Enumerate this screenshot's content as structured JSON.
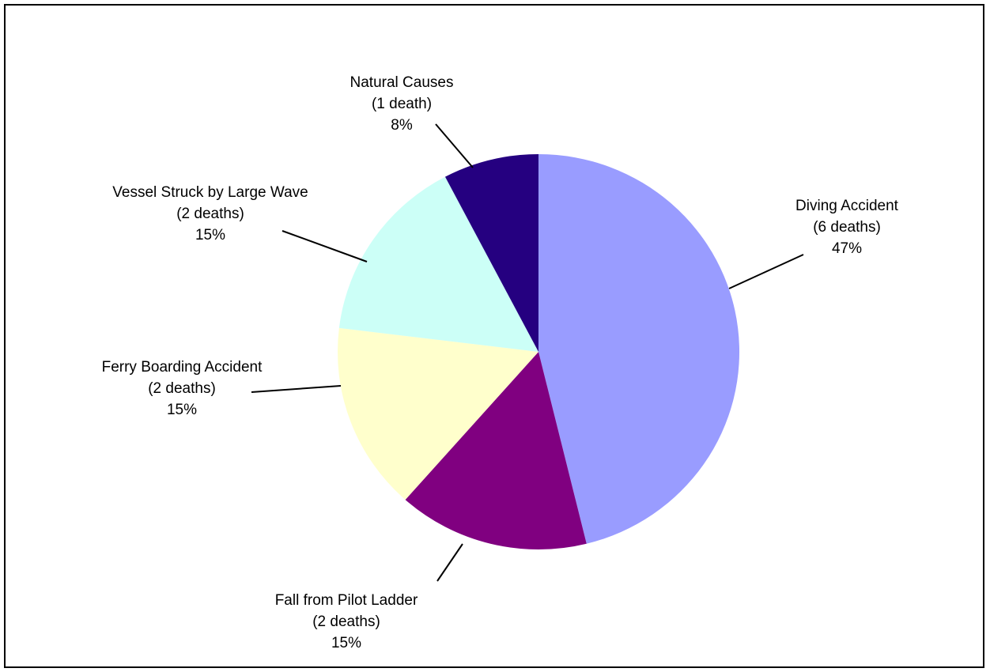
{
  "chart_data": {
    "type": "pie",
    "title": "",
    "slices": [
      {
        "label": "Diving Accident",
        "count_text": "(6 deaths)",
        "percent_text": "47%",
        "value": 6,
        "color": "#999cff"
      },
      {
        "label": "Fall from Pilot Ladder",
        "count_text": "(2 deaths)",
        "percent_text": "15%",
        "value": 2,
        "color": "#800080"
      },
      {
        "label": "Ferry Boarding Accident",
        "count_text": "(2 deaths)",
        "percent_text": "15%",
        "value": 2,
        "color": "#ffffcc"
      },
      {
        "label": "Vessel Struck by Large Wave",
        "count_text": "(2 deaths)",
        "percent_text": "15%",
        "value": 2,
        "color": "#ccfff7"
      },
      {
        "label": "Natural Causes",
        "count_text": "(1 death)",
        "percent_text": "8%",
        "value": 1,
        "color": "#250080"
      }
    ],
    "start_angle": "top, clockwise",
    "legend": "none (labels beside slices)"
  }
}
